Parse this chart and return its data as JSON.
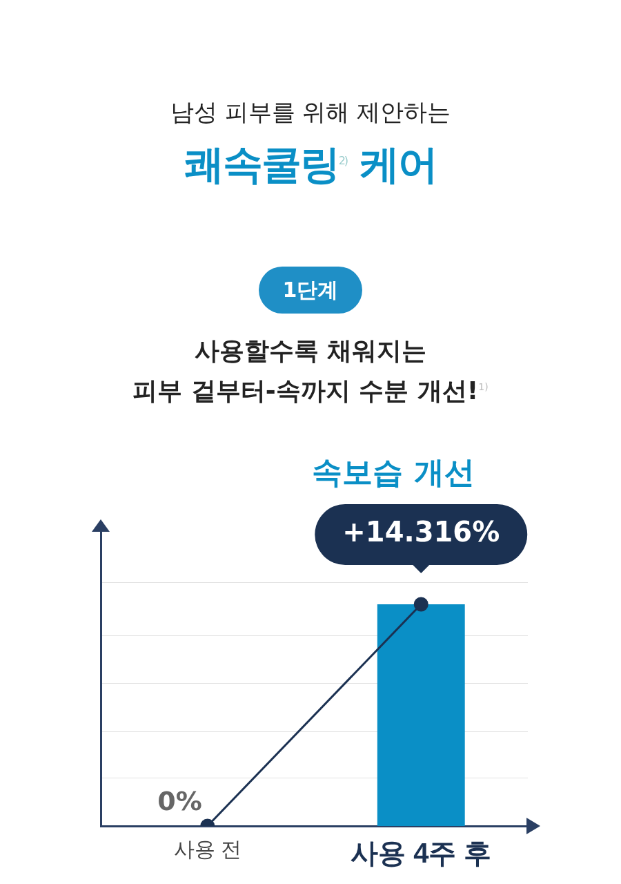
{
  "chart_data": {
    "type": "bar",
    "subtitle": "남성 피부를 위해 제안하는",
    "title": "쾌속쿨링$^{2)}$ 케어",
    "annotations": [
      "1단계",
      "사용할수록 채워지는",
      "피부 겉부터-속까지 수분 개선!$^{1)}$",
      "속보습 개선"
    ],
    "categories": [
      "사용 전",
      "사용 4주 후"
    ],
    "series": [
      {
        "color": "#0a8fc6",
        "values": [
          null,
          14.316
        ]
      },
      {
        "type": "line",
        "color": "#1b3152",
        "values": [
          0,
          14.316
        ],
        "value_labels": [
          "0%",
          "+14.316%"
        ]
      }
    ],
    "ylim": [
      0,
      19
    ],
    "yticks": [
      {
        "value": 3.1,
        "label": null
      },
      {
        "value": 6.1,
        "label": null
      },
      {
        "value": 9.2,
        "label": null
      },
      {
        "value": 12.3,
        "label": null
      },
      {
        "value": 15.7,
        "label": null
      }
    ],
    "grid": "y",
    "tick_labels": "x",
    "marker": "circle",
    "line_style": "solid"
  }
}
